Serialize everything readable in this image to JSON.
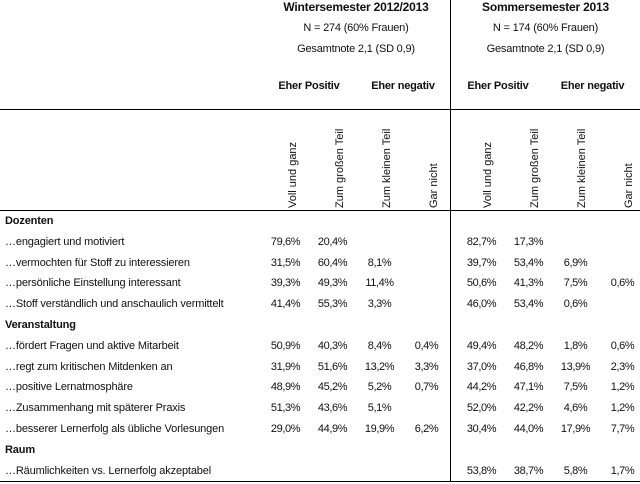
{
  "semesters": [
    {
      "title": "Wintersemester 2012/2013",
      "n": "N = 274 (60% Frauen)",
      "grade": "Gesamtnote 2,1 (SD 0,9)",
      "positive": "Eher Positiv",
      "negative": "Eher negativ"
    },
    {
      "title": "Sommersemester 2013",
      "n": "N = 174 (60% Frauen)",
      "grade": "Gesamtnote 2,1 (SD 0,9)",
      "positive": "Eher Positiv",
      "negative": "Eher negativ"
    }
  ],
  "columns": [
    "Voll und ganz",
    "Zum großen Teil",
    "Zum kleinen Teil",
    "Gar nicht"
  ],
  "rows": [
    {
      "type": "section",
      "label": "Dozenten"
    },
    {
      "type": "item",
      "label": "…engagiert und motiviert",
      "ws": [
        "79,6%",
        "20,4%",
        "",
        ""
      ],
      "ss": [
        "82,7%",
        "17,3%",
        "",
        ""
      ]
    },
    {
      "type": "item",
      "label": "…vermochten für Stoff zu interessieren",
      "ws": [
        "31,5%",
        "60,4%",
        "8,1%",
        ""
      ],
      "ss": [
        "39,7%",
        "53,4%",
        "6,9%",
        ""
      ]
    },
    {
      "type": "item",
      "label": "…persönliche Einstellung interessant",
      "ws": [
        "39,3%",
        "49,3%",
        "11,4%",
        ""
      ],
      "ss": [
        "50,6%",
        "41,3%",
        "7,5%",
        "0,6%"
      ]
    },
    {
      "type": "item",
      "label": "…Stoff verständlich und anschaulich vermittelt",
      "ws": [
        "41,4%",
        "55,3%",
        "3,3%",
        ""
      ],
      "ss": [
        "46,0%",
        "53,4%",
        "0,6%",
        ""
      ]
    },
    {
      "type": "section",
      "label": "Veranstaltung"
    },
    {
      "type": "item",
      "label": "…fördert Fragen und aktive Mitarbeit",
      "ws": [
        "50,9%",
        "40,3%",
        "8,4%",
        "0,4%"
      ],
      "ss": [
        "49,4%",
        "48,2%",
        "1,8%",
        "0,6%"
      ]
    },
    {
      "type": "item",
      "label": "…regt zum kritischen Mitdenken an",
      "ws": [
        "31,9%",
        "51,6%",
        "13,2%",
        "3,3%"
      ],
      "ss": [
        "37,0%",
        "46,8%",
        "13,9%",
        "2,3%"
      ]
    },
    {
      "type": "item",
      "label": "…positive Lernatmosphäre",
      "ws": [
        "48,9%",
        "45,2%",
        "5,2%",
        "0,7%"
      ],
      "ss": [
        "44,2%",
        "47,1%",
        "7,5%",
        "1,2%"
      ]
    },
    {
      "type": "item",
      "label": "…Zusammenhang mit späterer Praxis",
      "ws": [
        "51,3%",
        "43,6%",
        "5,1%",
        ""
      ],
      "ss": [
        "52,0%",
        "42,2%",
        "4,6%",
        "1,2%"
      ]
    },
    {
      "type": "item",
      "label": "…besserer Lernerfolg als übliche Vorlesungen",
      "ws": [
        "29,0%",
        "44,9%",
        "19,9%",
        "6,2%"
      ],
      "ss": [
        "30,4%",
        "44,0%",
        "17,9%",
        "7,7%"
      ]
    },
    {
      "type": "section",
      "label": "Raum"
    },
    {
      "type": "item",
      "label": "…Räumlichkeiten vs. Lernerfolg akzeptabel",
      "ws": [
        "",
        "",
        "",
        ""
      ],
      "ss": [
        "53,8%",
        "38,7%",
        "5,8%",
        "1,7%"
      ]
    }
  ]
}
